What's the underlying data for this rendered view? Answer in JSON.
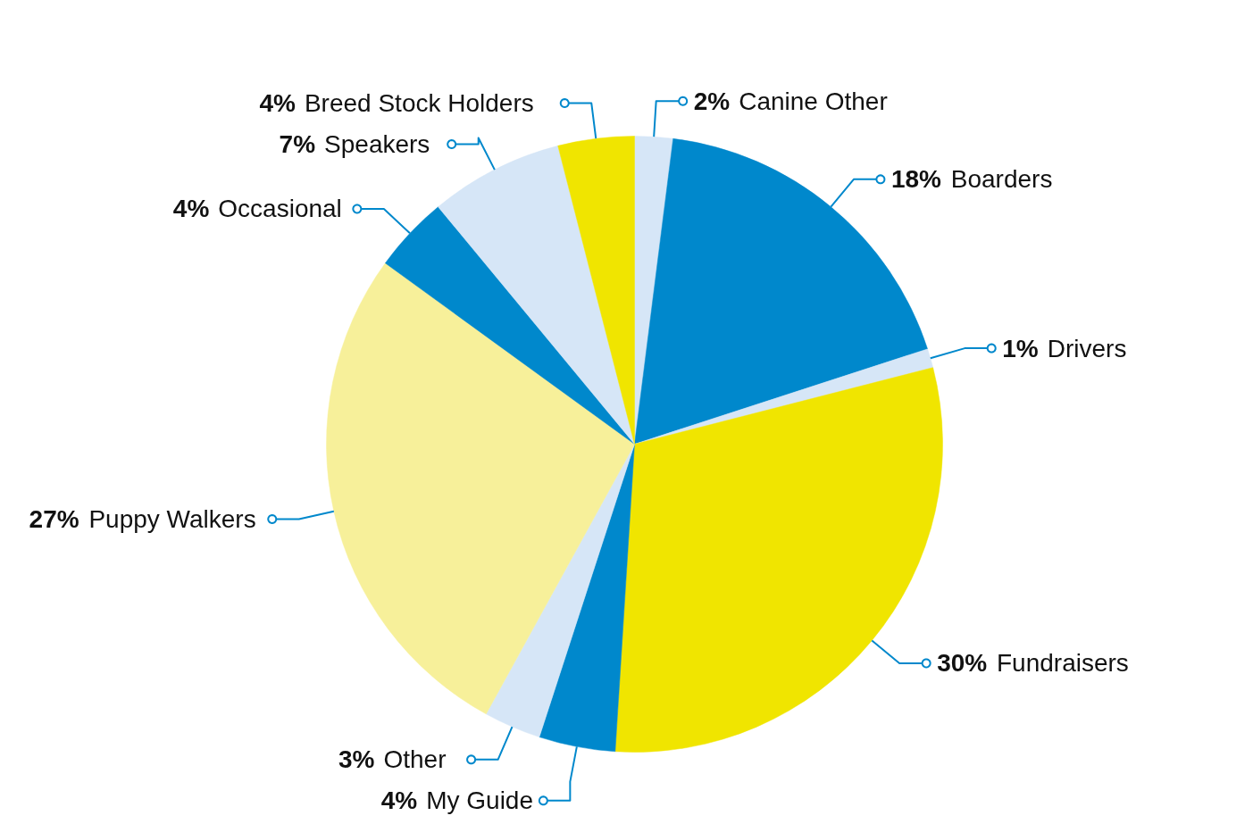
{
  "chart_data": {
    "type": "pie",
    "categories": [
      "Canine Other",
      "Boarders",
      "Drivers",
      "Fundraisers",
      "My Guide",
      "Other",
      "Puppy Walkers",
      "Occasional",
      "Speakers",
      "Breed Stock Holders"
    ],
    "values": [
      2,
      18,
      1,
      30,
      4,
      3,
      27,
      4,
      7,
      4
    ],
    "value_labels": [
      "2%",
      "18%",
      "1%",
      "30%",
      "4%",
      "3%",
      "27%",
      "4%",
      "7%",
      "4%"
    ],
    "colors": [
      "#d6e6f7",
      "#0088cc",
      "#d6e6f7",
      "#f0e500",
      "#0088cc",
      "#d6e6f7",
      "#f7f09a",
      "#0088cc",
      "#d6e6f7",
      "#f0e500"
    ]
  }
}
